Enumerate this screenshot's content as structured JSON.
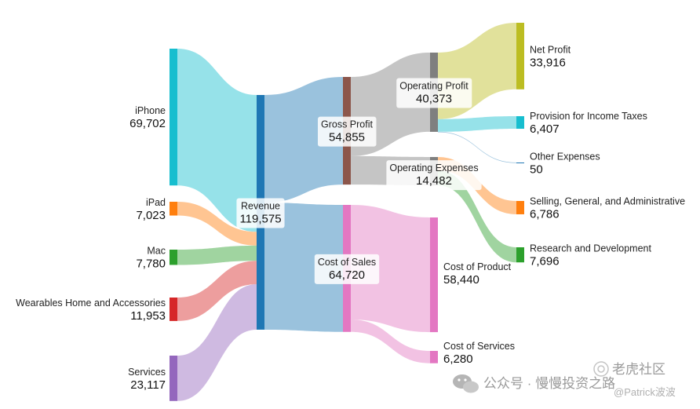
{
  "chart_data": {
    "type": "sankey",
    "title": "",
    "nodes": [
      {
        "id": "iphone",
        "name": "iPhone",
        "value": "69,702",
        "amount": 69702,
        "color": "#17becf"
      },
      {
        "id": "ipad",
        "name": "iPad",
        "value": "7,023",
        "amount": 7023,
        "color": "#ff7f0e"
      },
      {
        "id": "mac",
        "name": "Mac",
        "value": "7,780",
        "amount": 7780,
        "color": "#2ca02c"
      },
      {
        "id": "wearables",
        "name": "Wearables Home and Accessories",
        "value": "11,953",
        "amount": 11953,
        "color": "#d62728"
      },
      {
        "id": "services",
        "name": "Services",
        "value": "23,117",
        "amount": 23117,
        "color": "#9467bd"
      },
      {
        "id": "revenue",
        "name": "Revenue",
        "value": "119,575",
        "amount": 119575,
        "color": "#1f77b4"
      },
      {
        "id": "gross_profit",
        "name": "Gross Profit",
        "value": "54,855",
        "amount": 54855,
        "color": "#8c564b"
      },
      {
        "id": "cost_of_sales",
        "name": "Cost of Sales",
        "value": "64,720",
        "amount": 64720,
        "color": "#e377c2"
      },
      {
        "id": "operating_profit",
        "name": "Operating Profit",
        "value": "40,373",
        "amount": 40373,
        "color": "#7f7f7f"
      },
      {
        "id": "operating_expenses",
        "name": "Operating Expenses",
        "value": "14,482",
        "amount": 14482,
        "color": "#7f7f7f"
      },
      {
        "id": "cost_of_product",
        "name": "Cost of Product",
        "value": "58,440",
        "amount": 58440,
        "color": "#e377c2"
      },
      {
        "id": "cost_of_services",
        "name": "Cost of Services",
        "value": "6,280",
        "amount": 6280,
        "color": "#e377c2"
      },
      {
        "id": "net_profit",
        "name": "Net Profit",
        "value": "33,916",
        "amount": 33916,
        "color": "#bcbd22"
      },
      {
        "id": "provision_taxes",
        "name": "Provision for Income Taxes",
        "value": "6,407",
        "amount": 6407,
        "color": "#17becf"
      },
      {
        "id": "other_expenses",
        "name": "Other Expenses",
        "value": "50",
        "amount": 50,
        "color": "#1f77b4"
      },
      {
        "id": "sga",
        "name": "Selling, General, and Administrative",
        "value": "6,786",
        "amount": 6786,
        "color": "#ff7f0e"
      },
      {
        "id": "rnd",
        "name": "Research and Development",
        "value": "7,696",
        "amount": 7696,
        "color": "#2ca02c"
      }
    ],
    "links": [
      {
        "source": "iphone",
        "target": "revenue",
        "value": 69702,
        "color": "#17becf"
      },
      {
        "source": "ipad",
        "target": "revenue",
        "value": 7023,
        "color": "#ff7f0e"
      },
      {
        "source": "mac",
        "target": "revenue",
        "value": 7780,
        "color": "#2ca02c"
      },
      {
        "source": "wearables",
        "target": "revenue",
        "value": 11953,
        "color": "#d62728"
      },
      {
        "source": "services",
        "target": "revenue",
        "value": 23117,
        "color": "#9467bd"
      },
      {
        "source": "revenue",
        "target": "gross_profit",
        "value": 54855,
        "color": "#1f77b4"
      },
      {
        "source": "revenue",
        "target": "cost_of_sales",
        "value": 64720,
        "color": "#1f77b4"
      },
      {
        "source": "gross_profit",
        "target": "operating_profit",
        "value": 40373,
        "color": "#7f7f7f"
      },
      {
        "source": "gross_profit",
        "target": "operating_expenses",
        "value": 14482,
        "color": "#7f7f7f"
      },
      {
        "source": "cost_of_sales",
        "target": "cost_of_product",
        "value": 58440,
        "color": "#e377c2"
      },
      {
        "source": "cost_of_sales",
        "target": "cost_of_services",
        "value": 6280,
        "color": "#e377c2"
      },
      {
        "source": "operating_profit",
        "target": "net_profit",
        "value": 33916,
        "color": "#bcbd22"
      },
      {
        "source": "operating_profit",
        "target": "provision_taxes",
        "value": 6407,
        "color": "#17becf"
      },
      {
        "source": "operating_profit",
        "target": "other_expenses",
        "value": 50,
        "color": "#1f77b4"
      },
      {
        "source": "operating_expenses",
        "target": "sga",
        "value": 6786,
        "color": "#ff7f0e"
      },
      {
        "source": "operating_expenses",
        "target": "rnd",
        "value": 7696,
        "color": "#2ca02c"
      }
    ]
  },
  "watermark": {
    "wechat_text": "公众号 · 慢慢投资之路",
    "community_text": "老虎社区",
    "handle_text": "@Patrick波波"
  }
}
